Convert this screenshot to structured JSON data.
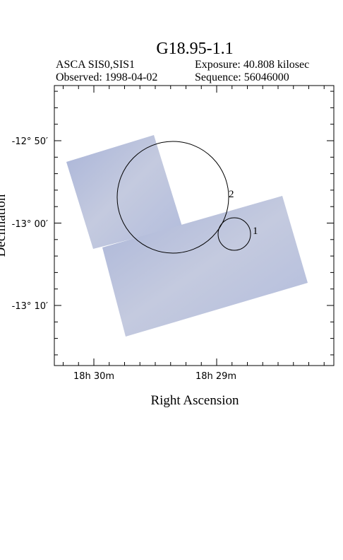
{
  "header": {
    "title": "G18.95-1.1",
    "instrument": "ASCA SIS0,SIS1",
    "exposure": "Exposure: 40.808 kilosec",
    "observed": "Observed: 1998-04-02",
    "sequence": "Sequence: 56046000"
  },
  "axes": {
    "x_label": "Right Ascension",
    "y_label": "Declination",
    "y_ticks": [
      "-12° 50′",
      "-13° 00′",
      "-13° 10′"
    ],
    "x_ticks": [
      "18h 30m",
      "18h 29m"
    ]
  },
  "regions": [
    "1",
    "2"
  ]
}
